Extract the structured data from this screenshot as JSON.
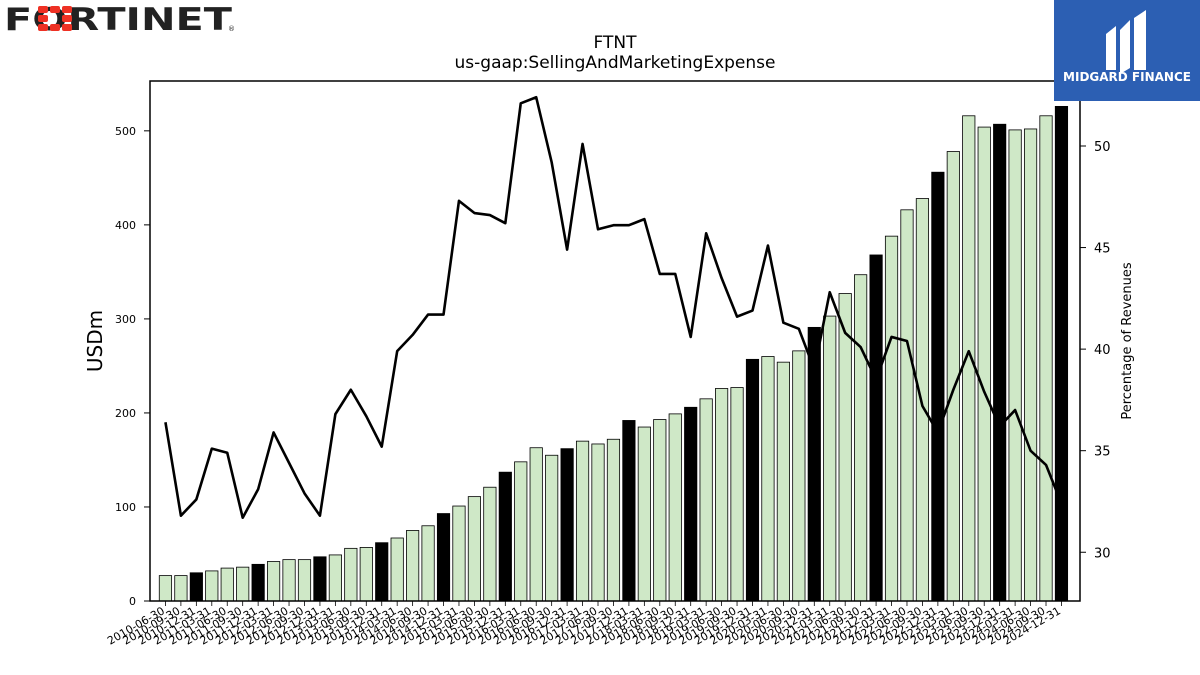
{
  "branding": {
    "left_logo": "FORTINET",
    "right_logo": "MIDGARD FINANCE",
    "brand_red": "#ee3124",
    "badge_blue": "#2c5fb3"
  },
  "chart_data": {
    "type": "bar",
    "title": "FTNT",
    "subtitle": "us-gaap:SellingAndMarketingExpense",
    "ylabel": "USDm",
    "y2label": "Percentage of Revenues",
    "ylim": [
      0,
      553
    ],
    "y2lim": [
      27.6,
      53.2
    ],
    "yticks": [
      0,
      100,
      200,
      300,
      400,
      500
    ],
    "y2ticks": [
      30,
      35,
      40,
      45,
      50
    ],
    "categories": [
      "2010-06-30",
      "2010-09-30",
      "2010-12-31",
      "2011-03-31",
      "2011-06-30",
      "2011-09-30",
      "2011-12-31",
      "2012-03-31",
      "2012-06-30",
      "2012-09-30",
      "2012-12-31",
      "2013-03-31",
      "2013-06-30",
      "2013-09-30",
      "2013-12-31",
      "2014-03-31",
      "2014-06-30",
      "2014-09-30",
      "2014-12-31",
      "2015-03-31",
      "2015-06-30",
      "2015-09-30",
      "2015-12-31",
      "2016-03-31",
      "2016-06-30",
      "2016-09-30",
      "2016-12-31",
      "2017-03-31",
      "2017-06-30",
      "2017-09-30",
      "2017-12-31",
      "2018-03-31",
      "2018-06-30",
      "2018-09-30",
      "2018-12-31",
      "2019-03-31",
      "2019-06-30",
      "2019-09-30",
      "2019-12-31",
      "2020-03-31",
      "2020-06-30",
      "2020-09-30",
      "2020-12-31",
      "2021-03-31",
      "2021-06-30",
      "2021-09-30",
      "2021-12-31",
      "2022-03-31",
      "2022-06-30",
      "2022-09-30",
      "2022-12-31",
      "2023-03-31",
      "2023-06-30",
      "2023-09-30",
      "2023-12-31",
      "2024-03-31",
      "2024-06-30",
      "2024-09-30",
      "2024-12-31"
    ],
    "series": [
      {
        "kind": "bar",
        "axis": "left",
        "values": [
          27,
          27,
          30,
          32,
          35,
          36,
          39,
          42,
          44,
          44,
          47,
          49,
          56,
          57,
          62,
          67,
          75,
          80,
          93,
          101,
          111,
          121,
          137,
          148,
          163,
          155,
          162,
          170,
          167,
          172,
          192,
          185,
          193,
          199,
          206,
          215,
          226,
          227,
          257,
          260,
          254,
          266,
          291,
          303,
          327,
          347,
          368,
          388,
          416,
          428,
          456,
          478,
          516,
          504,
          507,
          501,
          502,
          516,
          526
        ]
      },
      {
        "kind": "line",
        "axis": "right",
        "values": [
          36.4,
          31.8,
          32.6,
          35.1,
          34.9,
          31.7,
          33.1,
          35.9,
          34.4,
          32.9,
          31.8,
          36.8,
          38.0,
          36.7,
          35.2,
          39.9,
          40.7,
          41.7,
          41.7,
          47.3,
          46.7,
          46.6,
          46.2,
          52.1,
          52.4,
          49.2,
          44.9,
          50.1,
          45.9,
          46.1,
          46.1,
          46.4,
          43.7,
          43.7,
          40.6,
          45.7,
          43.5,
          41.6,
          41.9,
          45.1,
          41.3,
          41.0,
          39.0,
          42.8,
          40.8,
          40.1,
          38.5,
          40.6,
          40.4,
          37.2,
          35.9,
          38.0,
          39.9,
          37.9,
          36.2,
          37.0,
          35.0,
          34.3,
          32.4
        ]
      }
    ],
    "bar_fill": "#cfe8c7",
    "bar_highlight_fill": "#000000",
    "line_color": "#000000",
    "grid": false,
    "legend": "none"
  }
}
